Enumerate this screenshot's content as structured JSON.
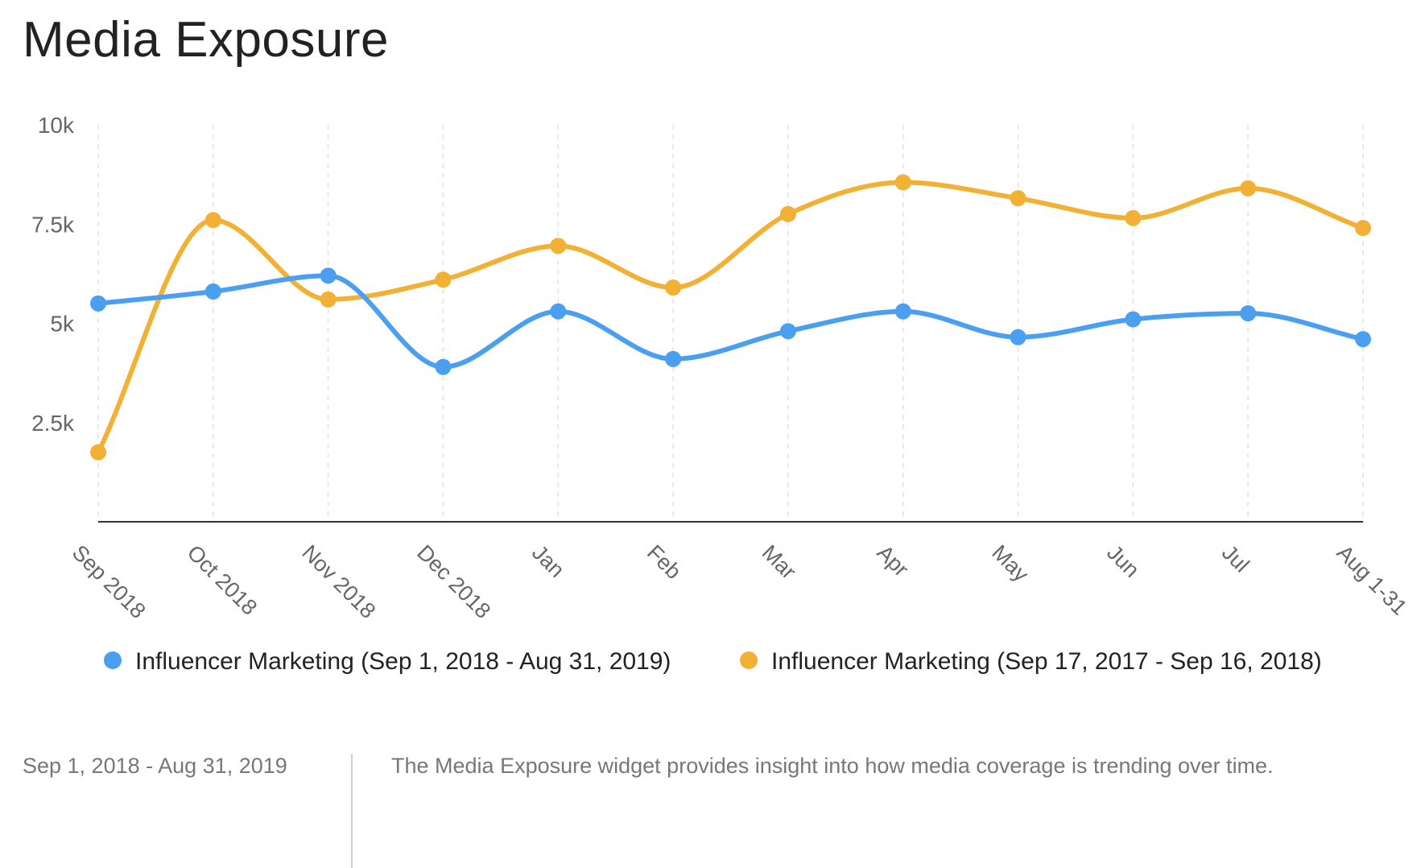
{
  "page": {
    "title": "Media Exposure",
    "footer_date": "Sep 1, 2018 - Aug 31, 2019",
    "footer_description": "The Media Exposure widget provides insight into how media coverage is trending over time."
  },
  "chart_data": {
    "type": "line",
    "title": "Media Exposure",
    "xlabel": "",
    "ylabel": "",
    "categories": [
      "Sep 2018",
      "Oct 2018",
      "Nov 2018",
      "Dec 2018",
      "Jan",
      "Feb",
      "Mar",
      "Apr",
      "May",
      "Jun",
      "Jul",
      "Aug 1-31"
    ],
    "ylim": [
      0,
      10000
    ],
    "yticks": [
      2500,
      5000,
      7500,
      10000
    ],
    "ytick_labels": [
      "2.5k",
      "5k",
      "7.5k",
      "10k"
    ],
    "grid": "vertical dashed",
    "legend_position": "bottom",
    "series": [
      {
        "name": "Influencer Marketing (Sep 1, 2018 - Aug 31, 2019)",
        "color": "#4a9ff0",
        "values": [
          5500,
          5800,
          6200,
          3900,
          5300,
          4100,
          4800,
          5300,
          4650,
          5100,
          5250,
          4600
        ]
      },
      {
        "name": "Influencer Marketing (Sep 17, 2017 - Sep 16, 2018)",
        "color": "#f2b035",
        "values": [
          1750,
          7600,
          5600,
          6100,
          6950,
          5900,
          7750,
          8550,
          8150,
          7650,
          8400,
          7400
        ]
      }
    ]
  }
}
